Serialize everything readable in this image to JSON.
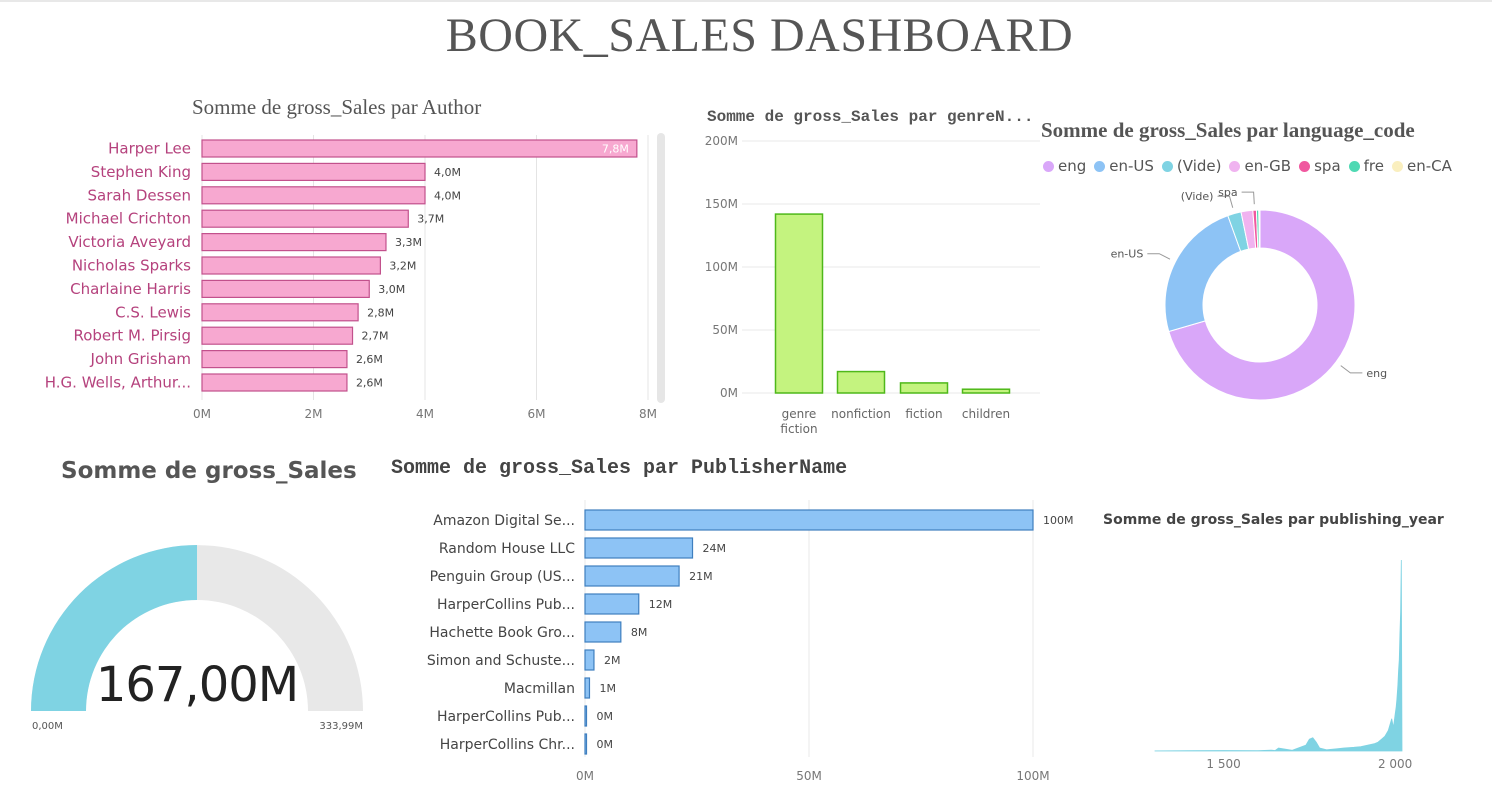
{
  "dashboard": {
    "title": "BOOK_SALES DASHBOARD"
  },
  "colors": {
    "author_bar": "#f7a8d0",
    "author_stroke": "#c2518c",
    "genre_bar": "#c4f37f",
    "genre_stroke": "#4fb81a",
    "publisher_bar": "#8dc3f5",
    "publisher_stroke": "#3f7fbf",
    "gauge_fill": "#7fd3e3",
    "gauge_bg": "#e8e8e8",
    "year_area": "#7fd3e3"
  },
  "chart_data": [
    {
      "id": "author",
      "type": "bar",
      "orientation": "horizontal",
      "title": "Somme de gross_Sales par Author",
      "categories": [
        "Harper Lee",
        "Stephen King",
        "Sarah Dessen",
        "Michael Crichton",
        "Victoria Aveyard",
        "Nicholas Sparks",
        "Charlaine Harris",
        "C.S. Lewis",
        "Robert M. Pirsig",
        "John Grisham",
        "H.G. Wells, Arthur..."
      ],
      "values": [
        7.8,
        4.0,
        4.0,
        3.7,
        3.3,
        3.2,
        3.0,
        2.8,
        2.7,
        2.6,
        2.6
      ],
      "labels": [
        "7,8M",
        "4,0M",
        "4,0M",
        "3,7M",
        "3,3M",
        "3,2M",
        "3,0M",
        "2,8M",
        "2,7M",
        "2,6M",
        "2,6M"
      ],
      "xlim": [
        0,
        8
      ],
      "xticks": [
        "0M",
        "2M",
        "4M",
        "6M",
        "8M"
      ],
      "grid": true
    },
    {
      "id": "genre",
      "type": "bar",
      "title": "Somme de gross_Sales par genreN...",
      "categories": [
        [
          "genre",
          "fiction"
        ],
        [
          "nonfiction"
        ],
        [
          "fiction"
        ],
        [
          "children"
        ]
      ],
      "values": [
        142,
        17,
        8,
        3
      ],
      "ylim": [
        0,
        200
      ],
      "yticks": [
        "0M",
        "50M",
        "100M",
        "150M",
        "200M"
      ],
      "grid": true
    },
    {
      "id": "language",
      "type": "pie",
      "donut": true,
      "title": "Somme de gross_Sales par language_code",
      "legend": [
        "eng",
        "en-US",
        "(Vide)",
        "en-GB",
        "spa",
        "fre",
        "en-CA"
      ],
      "legend_position": "top",
      "values": [
        70.5,
        24.0,
        2.3,
        2.0,
        0.6,
        0.4,
        0.2
      ],
      "slice_colors": [
        "#d9a7f9",
        "#8dc3f5",
        "#7fd3e3",
        "#f0b3f0",
        "#f0589f",
        "#4fd9b3",
        "#faefbf"
      ],
      "labels": [
        "eng",
        "en-US",
        "(Vide)",
        "",
        "spa",
        "",
        ""
      ]
    },
    {
      "id": "gauge",
      "type": "gauge",
      "title": "Somme de gross_Sales",
      "value": 167.0,
      "value_label": "167,00M",
      "min_label": "0,00M",
      "max_label": "333,99M",
      "min": 0,
      "max": 333.99
    },
    {
      "id": "publisher",
      "type": "bar",
      "orientation": "horizontal",
      "title": "Somme de gross_Sales par PublisherName",
      "categories": [
        "Amazon Digital Se...",
        "Random House LLC",
        "Penguin Group (US...",
        "HarperCollins Pub...",
        "Hachette Book Gro...",
        "Simon and Schuste...",
        "Macmillan",
        "HarperCollins Pub...",
        "HarperCollins Chr..."
      ],
      "values": [
        100,
        24,
        21,
        12,
        8,
        2,
        1,
        0.3,
        0.3
      ],
      "labels": [
        "100M",
        "24M",
        "21M",
        "12M",
        "8M",
        "2M",
        "1M",
        "0M",
        "0M"
      ],
      "xlim": [
        0,
        100
      ],
      "xticks": [
        "0M",
        "50M",
        "100M"
      ],
      "grid": true
    },
    {
      "id": "year",
      "type": "area",
      "title": "Somme de gross_Sales par publishing_year",
      "xlim": [
        1300,
        2020
      ],
      "xticks": [
        "1 500",
        "2 000"
      ],
      "x": [
        1300,
        1400,
        1500,
        1600,
        1640,
        1650,
        1660,
        1700,
        1740,
        1750,
        1760,
        1770,
        1780,
        1800,
        1830,
        1850,
        1880,
        1900,
        1920,
        1940,
        1950,
        1960,
        1970,
        1980,
        1985,
        1990,
        1995,
        2000,
        2003,
        2005,
        2008,
        2010,
        2012,
        2014,
        2016,
        2018,
        2020
      ],
      "y": [
        0.1,
        0.2,
        0.3,
        0.2,
        0.6,
        0.3,
        2,
        0.5,
        4,
        8,
        9,
        6,
        2,
        0.8,
        1.5,
        2,
        2.5,
        3,
        4,
        5,
        6,
        8,
        10,
        14,
        18,
        22,
        16,
        25,
        30,
        35,
        45,
        55,
        62,
        80,
        95,
        130,
        0
      ]
    }
  ]
}
